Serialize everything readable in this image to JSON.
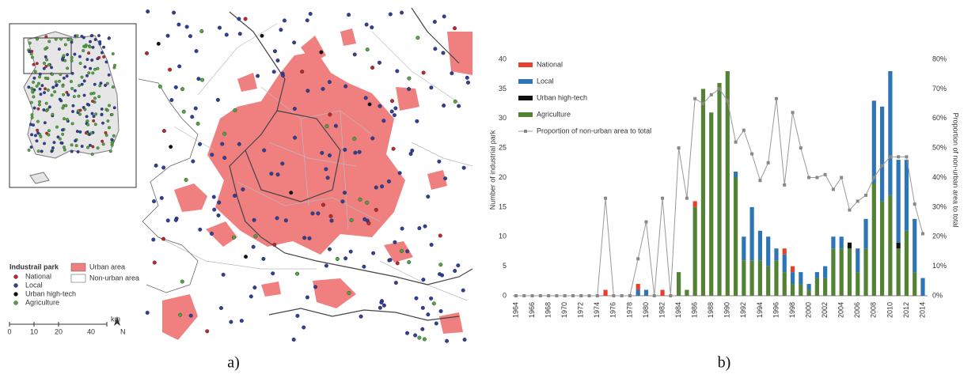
{
  "map": {
    "legend_title": "Industrail park",
    "legend": [
      {
        "label": "National",
        "color": "#c0272d"
      },
      {
        "label": "Local",
        "color": "#2e3f9e"
      },
      {
        "label": "Urban high-tech",
        "color": "#111111"
      },
      {
        "label": "Agriculture",
        "color": "#4fa83d"
      }
    ],
    "area_legend": [
      {
        "label": "Urban area",
        "color": "#f08080"
      },
      {
        "label": "Non-urban area",
        "color": "#ffffff"
      }
    ],
    "scale": [
      "0",
      "10",
      "20",
      "40",
      "km"
    ],
    "north": "N"
  },
  "captions": [
    "a)",
    "b)"
  ],
  "chart_data": {
    "type": "bar",
    "stacked": true,
    "ylabel": "Number of industrial park",
    "y2label": "Proportion of non-urban area to total",
    "categories": [
      "1964",
      null,
      "1966",
      null,
      "1968",
      null,
      "1970",
      null,
      "1972",
      null,
      "1974",
      null,
      "1976",
      null,
      "1978",
      null,
      "1980",
      null,
      "1982",
      null,
      "1984",
      null,
      "1986",
      null,
      "1988",
      null,
      "1990",
      null,
      "1992",
      null,
      "1994",
      null,
      "1996",
      null,
      "1998",
      null,
      "2000",
      null,
      "2002",
      null,
      "2004",
      null,
      "2006",
      null,
      "2008",
      null,
      "2010",
      null,
      "2012",
      null,
      "2014"
    ],
    "ylim": [
      0,
      40
    ],
    "yticks": [
      0,
      5,
      10,
      15,
      20,
      25,
      30,
      35,
      40
    ],
    "y2lim": [
      0,
      80
    ],
    "y2ticks": [
      {
        "value": 0,
        "label": "0%"
      },
      {
        "value": 10,
        "label": "10%"
      },
      {
        "value": 20,
        "label": "20%"
      },
      {
        "value": 30,
        "label": "30%"
      },
      {
        "value": 40,
        "label": "40%"
      },
      {
        "value": 50,
        "label": "50%"
      },
      {
        "value": 60,
        "label": "60%"
      },
      {
        "value": 70,
        "label": "70%"
      },
      {
        "value": 80,
        "label": "80%"
      }
    ],
    "series": [
      {
        "name": "Agriculture",
        "color": "#548235",
        "values": [
          0,
          0,
          0,
          0,
          0,
          0,
          0,
          0,
          0,
          0,
          0,
          0,
          0,
          0,
          0,
          0,
          0,
          0,
          0,
          0,
          4,
          1,
          15,
          35,
          31,
          36,
          38,
          20,
          6,
          6,
          6,
          5,
          6,
          4,
          2,
          2,
          1,
          3,
          3,
          8,
          8,
          8,
          4,
          8,
          19,
          16,
          17,
          8,
          11,
          4,
          0
        ]
      },
      {
        "name": "Urban high-tech",
        "color": "#111111",
        "values": [
          0,
          0,
          0,
          0,
          0,
          0,
          0,
          0,
          0,
          0,
          0,
          0,
          0,
          0,
          0,
          0,
          0,
          0,
          0,
          0,
          0,
          0,
          0,
          0,
          0,
          0,
          0,
          0,
          0,
          0,
          0,
          0,
          0,
          0,
          0,
          0,
          0,
          0,
          0,
          0,
          0,
          1,
          0,
          0,
          0,
          0,
          0,
          1,
          0,
          0,
          0
        ]
      },
      {
        "name": "Local",
        "color": "#2e75b6",
        "values": [
          0,
          0,
          0,
          0,
          0,
          0,
          0,
          0,
          0,
          0,
          0,
          0,
          0,
          0,
          0,
          1,
          1,
          0,
          0,
          0,
          0,
          0,
          0,
          0,
          0,
          0,
          0,
          1,
          4,
          9,
          5,
          5,
          2,
          3,
          2,
          2,
          1,
          1,
          2,
          2,
          2,
          0,
          4,
          5,
          14,
          16,
          21,
          14,
          12,
          9,
          3
        ]
      },
      {
        "name": "National",
        "color": "#e8402a",
        "values": [
          0,
          0,
          0,
          0,
          0,
          0,
          0,
          0,
          0,
          0,
          0,
          1,
          0,
          0,
          0,
          1,
          0,
          0,
          1,
          0,
          0,
          0,
          1,
          0,
          0,
          0,
          0,
          0,
          0,
          0,
          0,
          0,
          0,
          1,
          1,
          0,
          0,
          0,
          0,
          0,
          0,
          0,
          0,
          0,
          0,
          0,
          0,
          0,
          0,
          0,
          0
        ]
      },
      {
        "name": "Proportion of non-urban area to total",
        "type": "line",
        "axis": "y2",
        "color": "#999999",
        "values": [
          0,
          0,
          0,
          0,
          0,
          0,
          0,
          0,
          0,
          0,
          0,
          33,
          0,
          0,
          0,
          12.5,
          25,
          0,
          33,
          0,
          50,
          33,
          66.7,
          65,
          68,
          70,
          66,
          52,
          56,
          48,
          39,
          45,
          66.7,
          37.5,
          62,
          50,
          40,
          40,
          41,
          36,
          40,
          29,
          32,
          34,
          40,
          44,
          47,
          47,
          47,
          31,
          21
        ]
      }
    ],
    "legend_order": [
      3,
      2,
      1,
      0,
      4
    ]
  }
}
